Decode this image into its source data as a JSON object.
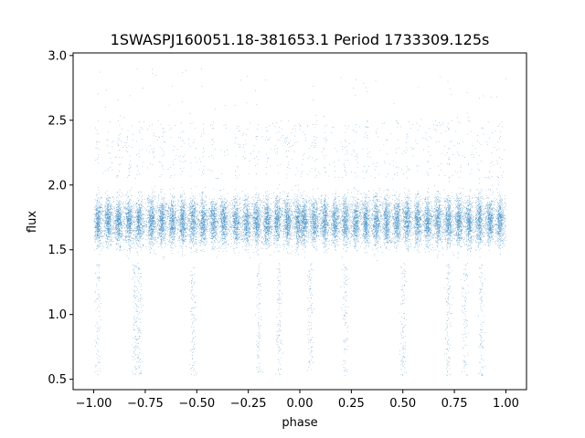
{
  "chart_data": {
    "type": "scatter",
    "title": "1SWASPJ160051.18-381653.1 Period 1733309.125s",
    "xlabel": "phase",
    "ylabel": "flux",
    "xlim": [
      -1.1,
      1.1
    ],
    "ylim": [
      0.42,
      3.02
    ],
    "x_ticks": [
      -1.0,
      -0.75,
      -0.5,
      -0.25,
      0.0,
      0.25,
      0.5,
      0.75,
      1.0
    ],
    "x_tick_labels": [
      "−1.00",
      "−0.75",
      "−0.50",
      "−0.25",
      "0.00",
      "0.25",
      "0.50",
      "0.75",
      "1.00"
    ],
    "y_ticks": [
      0.5,
      1.0,
      1.5,
      2.0,
      2.5,
      3.0
    ],
    "y_tick_labels": [
      "0.5",
      "1.0",
      "1.5",
      "2.0",
      "2.5",
      "3.0"
    ],
    "grid": false,
    "marker_color": "#1f77b4",
    "series": [
      {
        "x_range": [
          -1.0,
          1.0
        ],
        "typical_flux": 1.72,
        "typical_spread": [
          1.5,
          2.0
        ],
        "min_flux": 0.53,
        "max_flux": 2.9,
        "approx_points": 24000,
        "dense_phase_clusters": [
          -0.98,
          -0.93,
          -0.88,
          -0.83,
          -0.78,
          -0.72,
          -0.67,
          -0.62,
          -0.57,
          -0.52,
          -0.47,
          -0.42,
          -0.37,
          -0.31,
          -0.26,
          -0.21,
          -0.16,
          -0.11,
          -0.06,
          -0.01,
          0.02,
          0.07,
          0.12,
          0.17,
          0.22,
          0.27,
          0.32,
          0.37,
          0.42,
          0.47,
          0.52,
          0.57,
          0.62,
          0.67,
          0.72,
          0.77,
          0.82,
          0.87,
          0.92,
          0.97
        ],
        "low_flux_phases": [
          -0.98,
          -0.8,
          -0.78,
          -0.52,
          -0.2,
          -0.1,
          0.05,
          0.22,
          0.5,
          0.72,
          0.8,
          0.88
        ]
      }
    ]
  }
}
